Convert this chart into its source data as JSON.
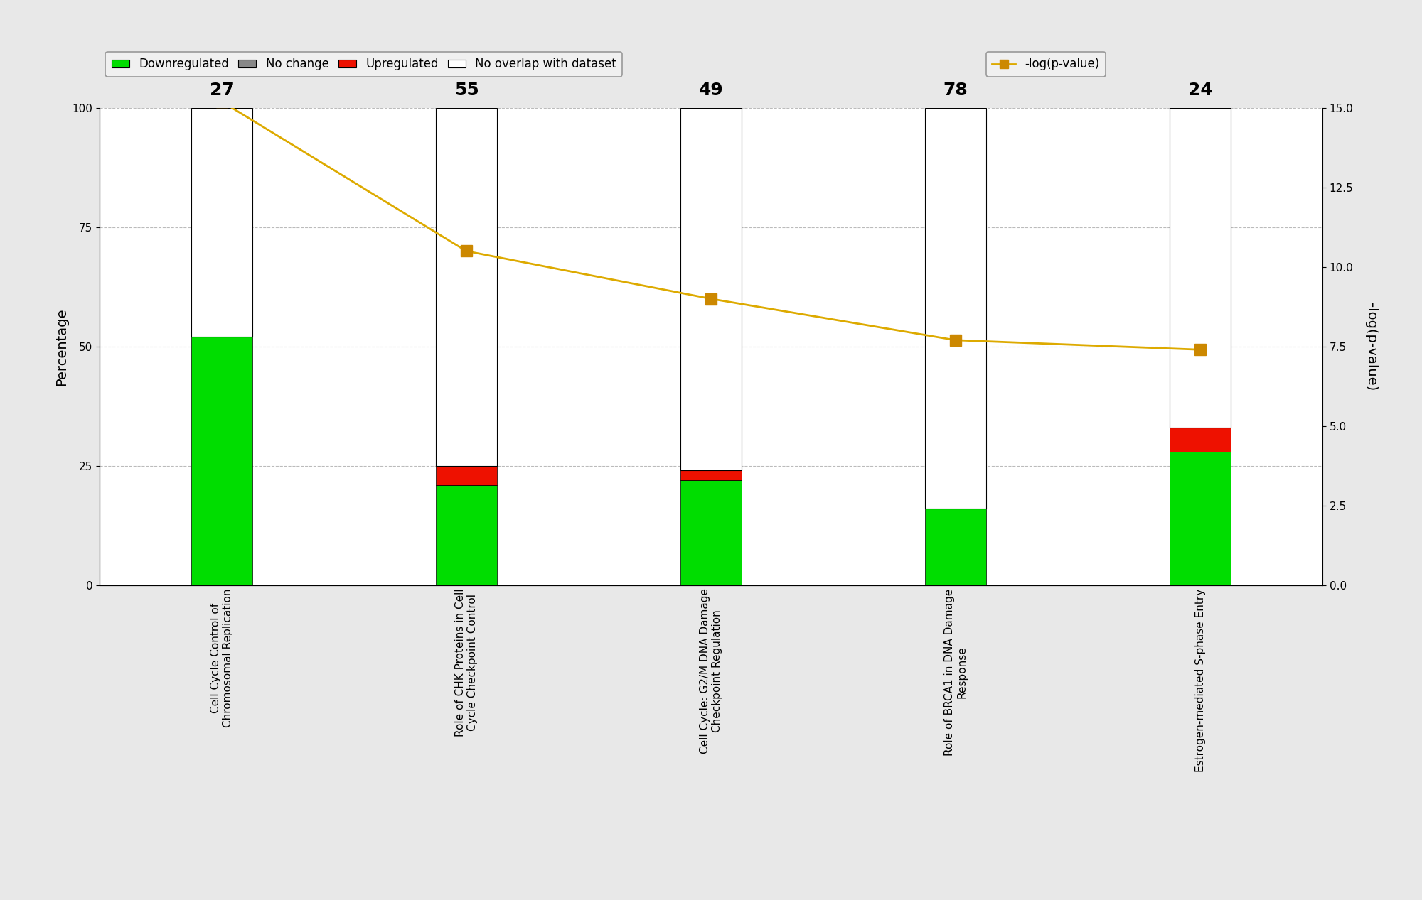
{
  "categories": [
    "Cell Cycle Control of\nChromosomal Replication",
    "Role of CHK Proteins in Cell\nCycle Checkpoint Control",
    "Cell Cycle: G2/M DNA Damage\nCheckpoint Regulation",
    "Role of BRCA1 in DNA Damage\nResponse",
    "Estrogen-mediated S-phase Entry"
  ],
  "gene_counts": [
    27,
    55,
    49,
    78,
    24
  ],
  "downregulated": [
    52.0,
    21.0,
    22.0,
    16.0,
    28.0
  ],
  "no_change": [
    0.0,
    0.0,
    0.0,
    0.0,
    0.0
  ],
  "upregulated": [
    0.0,
    4.0,
    2.0,
    0.0,
    5.0
  ],
  "no_overlap": [
    48.0,
    75.0,
    76.0,
    84.0,
    67.0
  ],
  "pvalues_neglog": [
    15.2,
    10.5,
    9.0,
    7.7,
    7.4
  ],
  "bar_width": 0.25,
  "colors": {
    "downregulated": "#00dd00",
    "no_change": "#888888",
    "upregulated": "#ee1100",
    "no_overlap": "#ffffff",
    "pvalue_line": "#ddaa00",
    "pvalue_marker": "#cc8800"
  },
  "ylabel_left": "Percentage",
  "ylabel_right": "-log(p-value)",
  "ylim_left": [
    0,
    100
  ],
  "ylim_right": [
    0,
    15.0
  ],
  "plot_bg": "#ffffff",
  "outer_bg": "#e8e8e8",
  "grid_color": "#bbbbbb",
  "legend_items": [
    "Downregulated",
    "No change",
    "Upregulated",
    "No overlap with dataset",
    "-log(p-value)"
  ]
}
